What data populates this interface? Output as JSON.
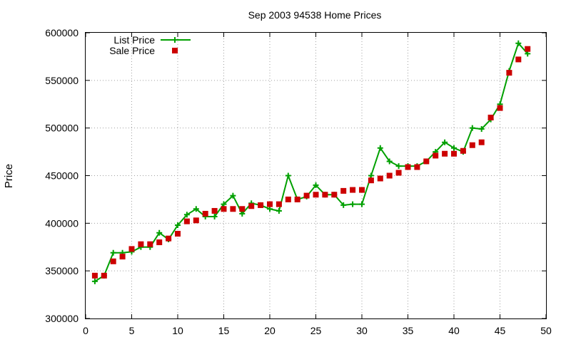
{
  "chart_data": {
    "type": "line",
    "title": "Sep 2003 94538 Home Prices",
    "xlabel": "",
    "ylabel": "Price",
    "xlim": [
      0,
      50
    ],
    "ylim": [
      300000,
      600000
    ],
    "xticks": [
      "0",
      "5",
      "10",
      "15",
      "20",
      "25",
      "30",
      "35",
      "40",
      "45",
      "50"
    ],
    "yticks": [
      "300000",
      "350000",
      "400000",
      "450000",
      "500000",
      "550000",
      "600000"
    ],
    "grid": true,
    "legend_position": "top-left",
    "series": [
      {
        "name": "List Price",
        "style": "line-with-plus-markers",
        "color": "#00a000",
        "x": [
          1,
          2,
          3,
          4,
          5,
          6,
          7,
          8,
          9,
          10,
          11,
          12,
          13,
          14,
          15,
          16,
          17,
          18,
          19,
          20,
          21,
          22,
          23,
          24,
          25,
          26,
          27,
          28,
          29,
          30,
          31,
          32,
          33,
          34,
          35,
          36,
          37,
          38,
          39,
          40,
          41,
          42,
          43,
          44,
          45,
          46,
          47,
          48
        ],
        "y": [
          339000,
          345000,
          369000,
          369000,
          370000,
          375000,
          375000,
          390000,
          383000,
          398000,
          409000,
          415000,
          407000,
          407000,
          420000,
          429000,
          410000,
          421000,
          419000,
          415000,
          413000,
          450000,
          425000,
          428000,
          440000,
          430000,
          430000,
          419000,
          420000,
          420000,
          450000,
          479000,
          465000,
          460000,
          460000,
          460000,
          465000,
          475000,
          485000,
          479000,
          475000,
          500000,
          499000,
          509000,
          525000,
          560000,
          589000,
          578000
        ]
      },
      {
        "name": "Sale Price",
        "style": "square-markers",
        "color": "#cc0000",
        "x": [
          1,
          2,
          3,
          4,
          5,
          6,
          7,
          8,
          9,
          10,
          11,
          12,
          13,
          14,
          15,
          16,
          17,
          18,
          19,
          20,
          21,
          22,
          23,
          24,
          25,
          26,
          27,
          28,
          29,
          30,
          31,
          32,
          33,
          34,
          35,
          36,
          37,
          38,
          39,
          40,
          41,
          42,
          43,
          44,
          45,
          46,
          47,
          48
        ],
        "y": [
          345000,
          345000,
          360000,
          365000,
          373000,
          378000,
          378000,
          380000,
          384000,
          389000,
          402000,
          403000,
          410000,
          413000,
          415000,
          415000,
          415000,
          418000,
          419000,
          420000,
          420000,
          425000,
          425000,
          429000,
          430000,
          430000,
          430000,
          434000,
          435000,
          435000,
          445000,
          447000,
          450000,
          453000,
          459000,
          459000,
          465000,
          471000,
          473000,
          473000,
          476000,
          482000,
          485000,
          511000,
          521000,
          558000,
          572000,
          583000
        ]
      }
    ]
  }
}
